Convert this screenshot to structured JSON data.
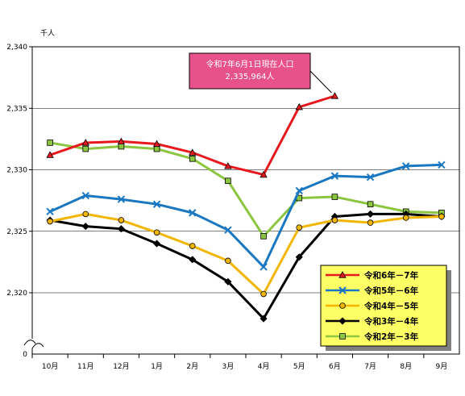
{
  "chart_data": {
    "type": "line",
    "unit_label": "千人",
    "categories": [
      "10月",
      "11月",
      "12月",
      "1月",
      "2月",
      "3月",
      "4月",
      "5月",
      "6月",
      "7月",
      "8月",
      "9月"
    ],
    "y_ticks": [
      "2,320",
      "2,325",
      "2,330",
      "2,335",
      "2,340"
    ],
    "y_zero_label": "0",
    "ylim": [
      2318,
      2340
    ],
    "axis_break": true,
    "grid": true,
    "legend_position": "bottom-right",
    "series": [
      {
        "name": "令和6年－7年",
        "color": "#e8191e",
        "marker": "triangle",
        "values": [
          2331.2,
          2332.2,
          2332.3,
          2332.1,
          2331.4,
          2330.3,
          2329.6,
          2335.1,
          2336.0,
          null,
          null,
          null
        ]
      },
      {
        "name": "令和5年－6年",
        "color": "#1a78c2",
        "marker": "x",
        "values": [
          2326.6,
          2327.9,
          2327.6,
          2327.2,
          2326.5,
          2325.1,
          2322.1,
          2328.3,
          2329.5,
          2329.4,
          2330.3,
          2330.4
        ]
      },
      {
        "name": "令和4年－5年",
        "color": "#f2b600",
        "marker": "circle",
        "values": [
          2325.8,
          2326.4,
          2325.9,
          2324.9,
          2323.8,
          2322.6,
          2319.9,
          2325.3,
          2325.9,
          2325.7,
          2326.1,
          2326.2
        ]
      },
      {
        "name": "令和3年－4年",
        "color": "#000000",
        "marker": "diamond",
        "values": [
          2325.9,
          2325.4,
          2325.2,
          2324.0,
          2322.7,
          2320.9,
          2317.9,
          2322.9,
          2326.2,
          2326.4,
          2326.4,
          2326.2
        ]
      },
      {
        "name": "令和2年－3年",
        "color": "#8cc63f",
        "marker": "square",
        "values": [
          2332.2,
          2331.7,
          2331.9,
          2331.7,
          2330.9,
          2329.1,
          2324.6,
          2327.7,
          2327.8,
          2327.2,
          2326.6,
          2326.5
        ]
      }
    ],
    "annotation": {
      "line1": "令和7年6月1日現在人口",
      "line2": "2,335,964人",
      "series_index": 0,
      "point_index": 8,
      "fill": "#e8528a"
    }
  },
  "colors": {
    "legend_bg": "#ffff66",
    "grid": "#000000"
  }
}
